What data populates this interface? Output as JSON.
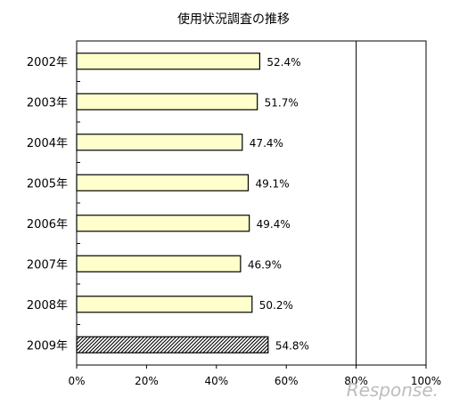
{
  "chart_data": {
    "type": "bar",
    "orientation": "horizontal",
    "title": "使用状況調査の推移",
    "categories": [
      "2002年",
      "2003年",
      "2004年",
      "2005年",
      "2006年",
      "2007年",
      "2008年",
      "2009年"
    ],
    "values": [
      52.4,
      51.7,
      47.4,
      49.1,
      49.4,
      46.9,
      50.2,
      54.8
    ],
    "value_labels": [
      "52.4%",
      "51.7%",
      "47.4%",
      "49.1%",
      "49.4%",
      "46.9%",
      "50.2%",
      "54.8%"
    ],
    "xlim": [
      0,
      100
    ],
    "x_ticks": [
      0,
      20,
      40,
      60,
      80,
      100
    ],
    "x_tick_labels": [
      "0%",
      "20%",
      "40%",
      "60%",
      "80%",
      "100%"
    ],
    "xlabel": "",
    "ylabel": "",
    "grid": "vertical lines at 80% only",
    "legend": "none",
    "colors": {
      "bar_fill": "#ffffcc",
      "bar_stroke": "#000000",
      "highlight_fill": "crosshatch-pattern",
      "highlight_category": "2009年"
    }
  },
  "watermark": {
    "text": "Response."
  }
}
